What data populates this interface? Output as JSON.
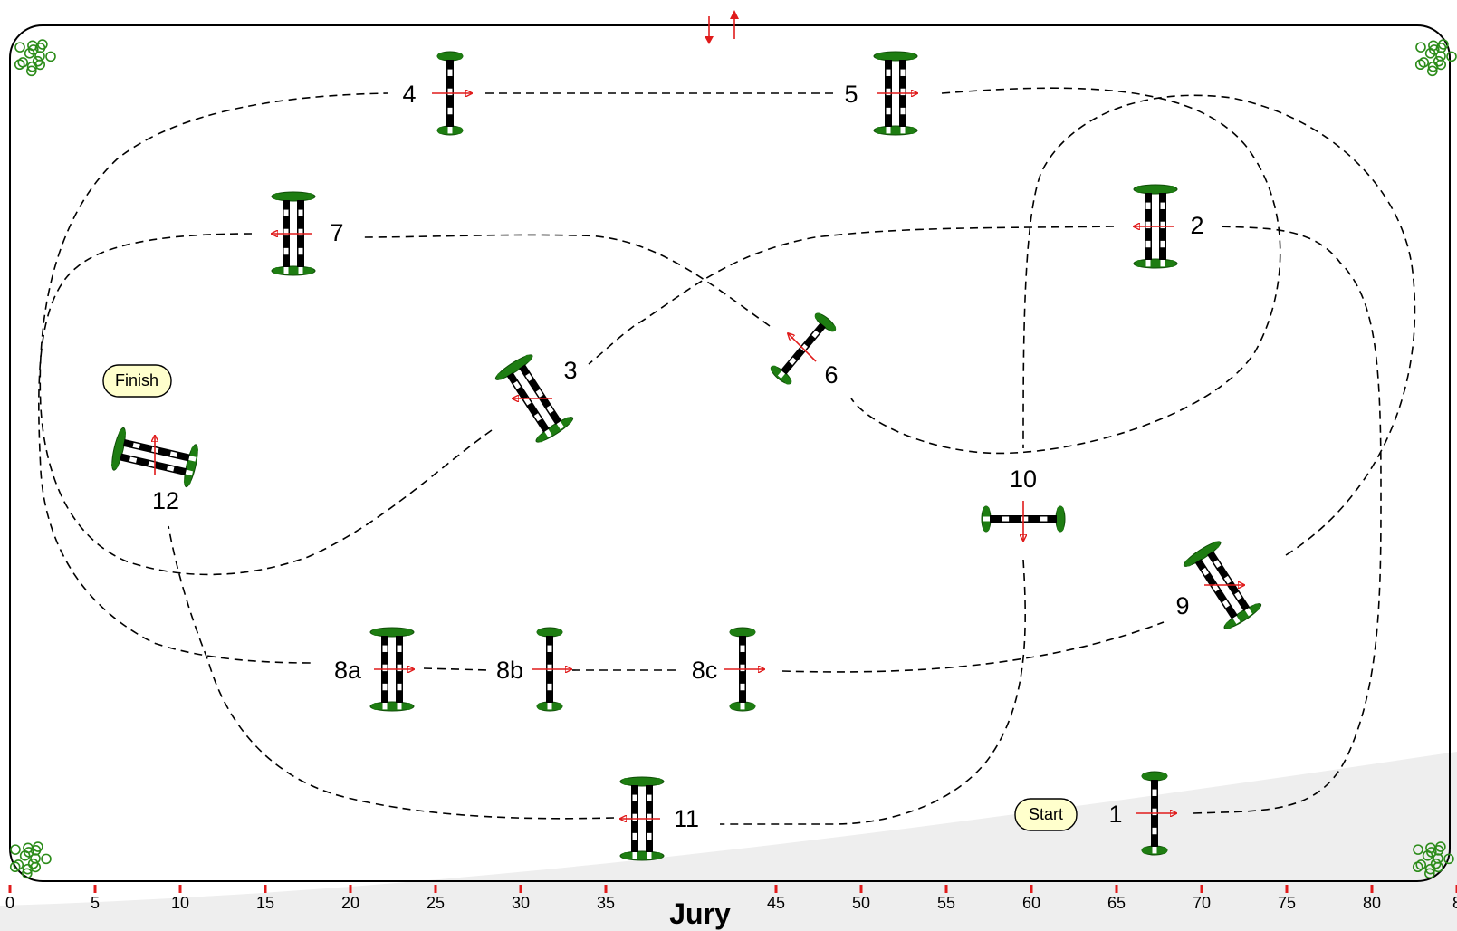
{
  "arena": {
    "ruler": {
      "labels": [
        "0",
        "5",
        "10",
        "15",
        "20",
        "25",
        "30",
        "35",
        "45",
        "50",
        "55",
        "60",
        "65",
        "70",
        "75",
        "80",
        "8"
      ]
    },
    "jury_label": "Jury",
    "start_label": "Start",
    "finish_label": "Finish"
  },
  "fences": [
    {
      "label": "1",
      "type": "vertical",
      "direction": "right"
    },
    {
      "label": "2",
      "type": "oxer",
      "direction": "left"
    },
    {
      "label": "3",
      "type": "oxer",
      "direction": "left"
    },
    {
      "label": "4",
      "type": "vertical",
      "direction": "right"
    },
    {
      "label": "5",
      "type": "oxer",
      "direction": "right"
    },
    {
      "label": "6",
      "type": "vertical",
      "direction": "up-left"
    },
    {
      "label": "7",
      "type": "oxer",
      "direction": "left"
    },
    {
      "label": "8a",
      "type": "oxer",
      "direction": "right"
    },
    {
      "label": "8b",
      "type": "vertical",
      "direction": "right"
    },
    {
      "label": "8c",
      "type": "vertical",
      "direction": "right"
    },
    {
      "label": "9",
      "type": "oxer",
      "direction": "right"
    },
    {
      "label": "10",
      "type": "vertical",
      "direction": "down"
    },
    {
      "label": "11",
      "type": "oxer",
      "direction": "left"
    },
    {
      "label": "12",
      "type": "oxer",
      "direction": "up"
    }
  ],
  "colors": {
    "pole_black": "#000000",
    "pole_white": "#ffffff",
    "standard_green": "#1e7d12",
    "arrow_red": "#e01b1b",
    "pill_fill": "#ffffcc",
    "ground_shade": "#eeeeee",
    "tree_green": "#2c8c1a"
  },
  "icons": [
    "tree-icon",
    "entry-arrow-icon",
    "exit-arrow-icon"
  ]
}
